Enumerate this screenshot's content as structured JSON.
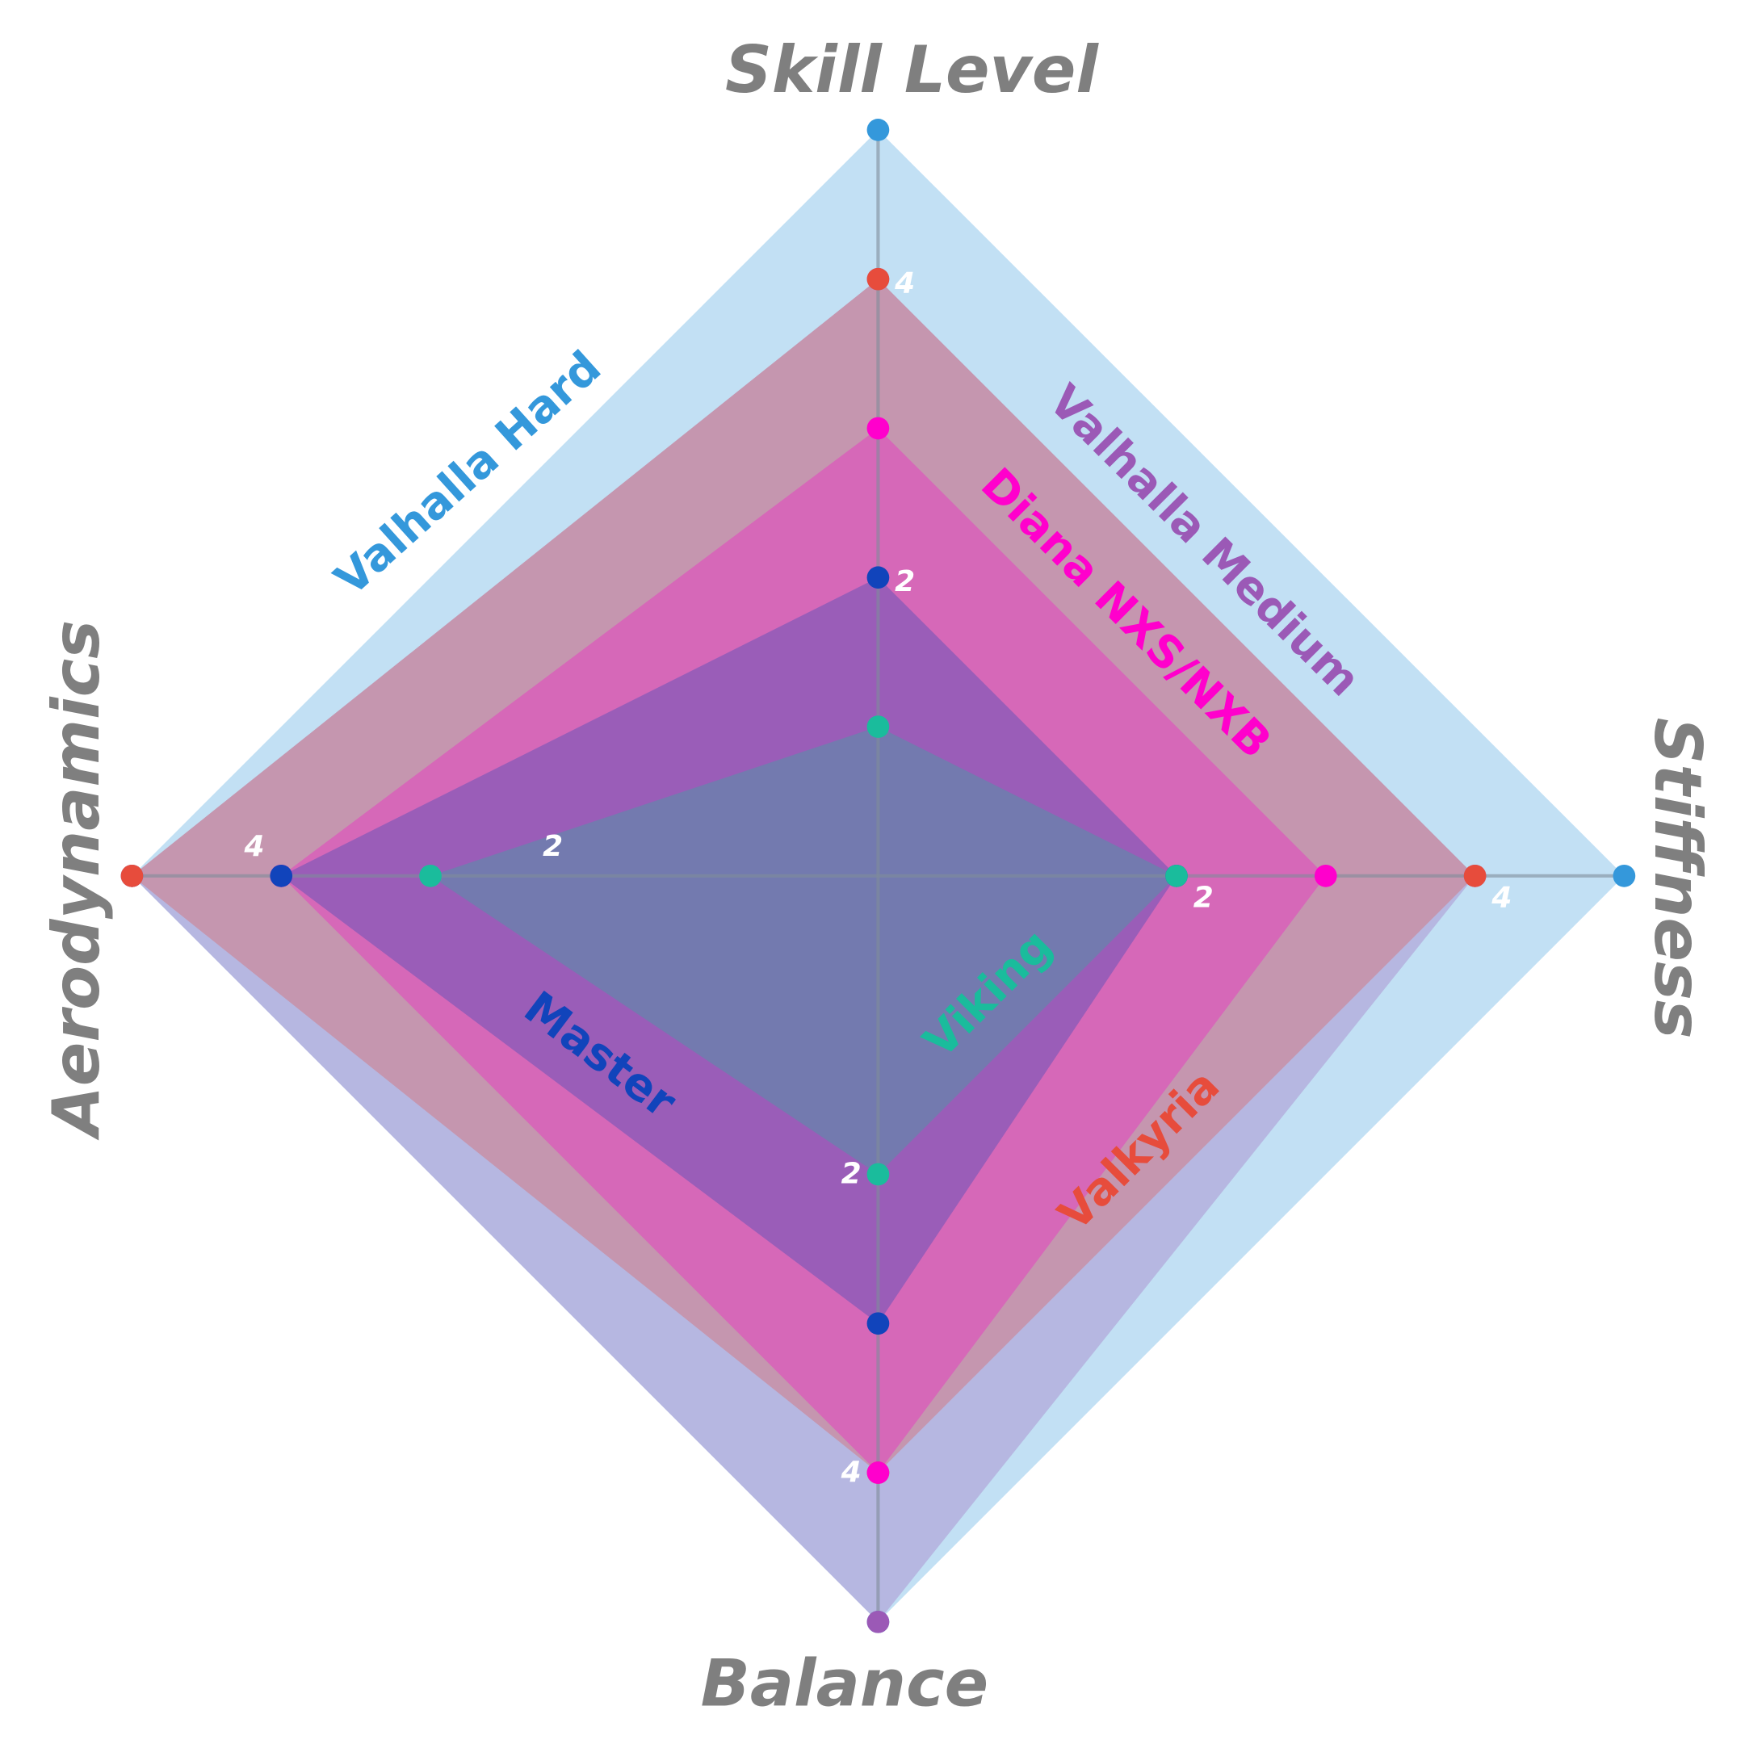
{
  "chart_data": {
    "type": "radar",
    "axes": [
      "Skill Level",
      "Stiffness",
      "Balance",
      "Aerodynamics"
    ],
    "range": [
      0,
      5
    ],
    "tick_labels": [
      "2",
      "4"
    ],
    "series": [
      {
        "name": "Valhalla Hard",
        "color": "#3498db",
        "values": [
          5,
          5,
          5,
          5
        ]
      },
      {
        "name": "Valhalla Medium",
        "color": "#9b59b6",
        "values": [
          4,
          4,
          5,
          5
        ]
      },
      {
        "name": "Valkyria",
        "color": "#e74c3c",
        "values": [
          4,
          4,
          4,
          5
        ]
      },
      {
        "name": "Diana NXS/NXB",
        "color": "#ff00cc",
        "values": [
          3,
          3,
          4,
          4
        ]
      },
      {
        "name": "Master",
        "color": "#1144bb",
        "values": [
          2,
          2,
          3,
          4
        ]
      },
      {
        "name": "Viking",
        "color": "#1abc9c",
        "values": [
          1,
          2,
          2,
          3
        ]
      }
    ]
  }
}
